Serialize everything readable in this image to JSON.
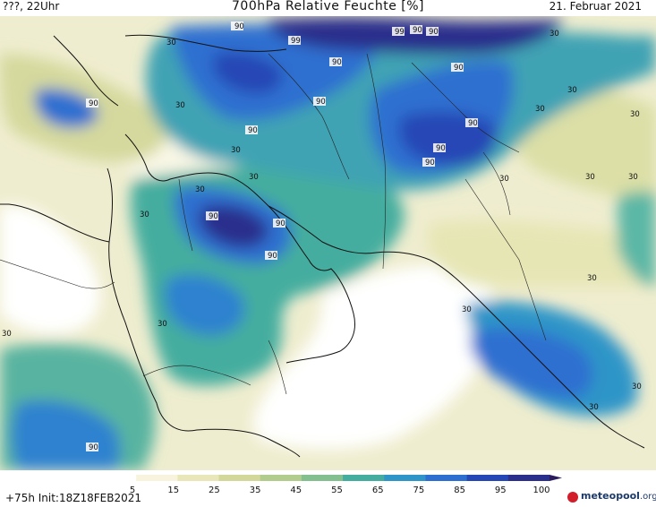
{
  "header": {
    "left": "???, 22Uhr",
    "title": "700hPa Relative Feuchte [%]",
    "right": "21. Februar 2021"
  },
  "legend": {
    "ticks": [
      "5",
      "15",
      "25",
      "35",
      "45",
      "55",
      "65",
      "75",
      "85",
      "95",
      "100"
    ],
    "colors": [
      "#ffffff",
      "#f7f3dc",
      "#e9e7b9",
      "#d3d79a",
      "#b2cc8e",
      "#84c08f",
      "#45ad9f",
      "#2f95c8",
      "#2d6fd0",
      "#2546b5",
      "#2a2f8c",
      "#2a1b5c"
    ]
  },
  "footer": {
    "run": "+75h Init:18Z18FEB2021",
    "logo_main": "meteopool",
    "logo_tld": ".org"
  },
  "contour_labels": {
    "ninety": "90",
    "ninety_nine": "99",
    "thirty": "30"
  }
}
